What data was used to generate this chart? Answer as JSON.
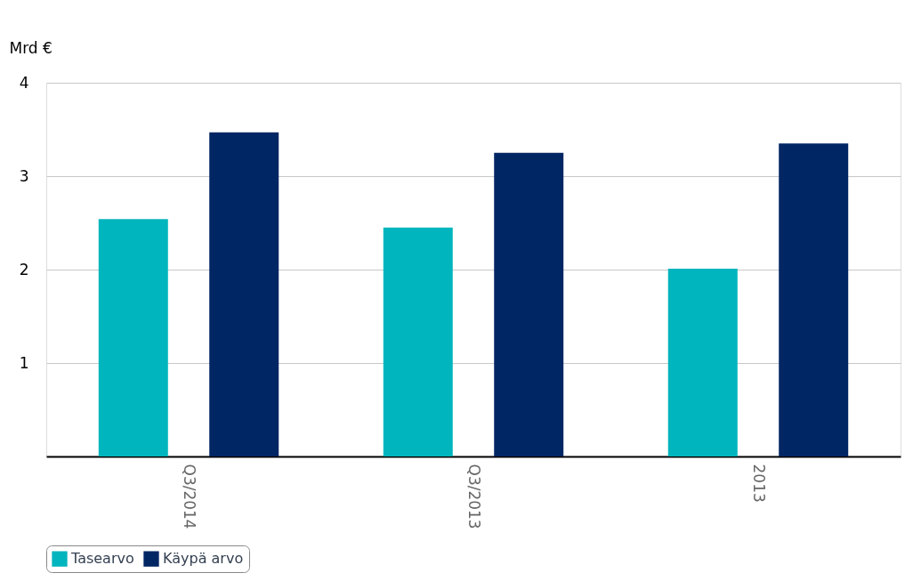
{
  "chart_data": {
    "type": "bar",
    "ylabel": "Mrd €",
    "categories": [
      "Q3/2014",
      "Q3/2013",
      "2013"
    ],
    "series": [
      {
        "name": "Tasearvo",
        "color": "#00b5bd",
        "values": [
          2.54,
          2.45,
          2.01
        ]
      },
      {
        "name": "Käypä arvo",
        "color": "#002664",
        "values": [
          3.47,
          3.25,
          3.35
        ]
      }
    ],
    "ylim": [
      0,
      4
    ],
    "yticks": [
      1,
      2,
      3,
      4
    ],
    "grid": "y",
    "legend": "bottom"
  }
}
